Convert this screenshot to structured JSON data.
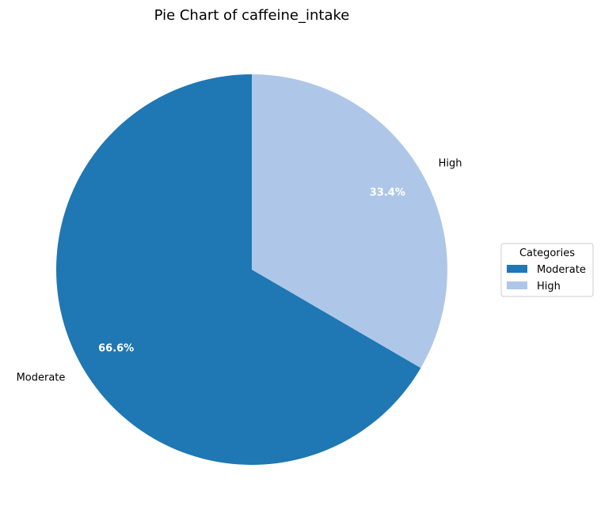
{
  "chart_data": {
    "type": "pie",
    "title": "Pie Chart of caffeine_intake",
    "categories": [
      "Moderate",
      "High"
    ],
    "values": [
      66.6,
      33.4
    ],
    "percent_labels": [
      "66.6%",
      "33.4%"
    ],
    "colors": [
      "#1f77b4",
      "#aec7e8"
    ],
    "start_angle_deg": 90,
    "direction": "counterclockwise",
    "legend": {
      "title": "Categories",
      "entries": [
        "Moderate",
        "High"
      ],
      "placement": "center-right"
    }
  }
}
